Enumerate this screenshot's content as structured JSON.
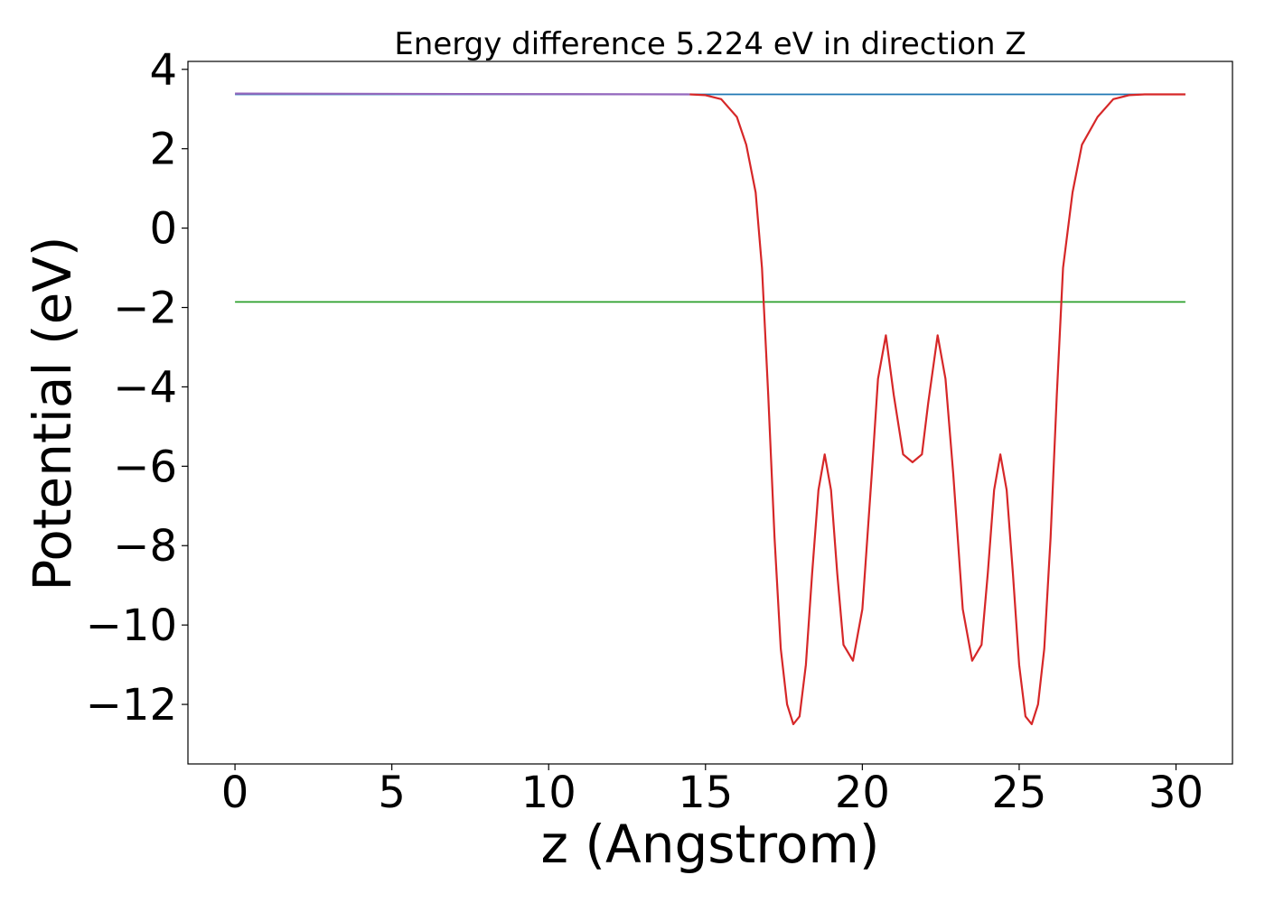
{
  "chart_data": {
    "type": "line",
    "title": "Energy difference 5.224 eV in direction Z",
    "xlabel": "z (Angstrom)",
    "ylabel": "Potential (eV)",
    "xlim": [
      -1.5,
      31.8
    ],
    "ylim": [
      -13.5,
      4.2
    ],
    "xticks": [
      0,
      5,
      10,
      15,
      20,
      25,
      30
    ],
    "xtick_labels": [
      "0",
      "5",
      "10",
      "15",
      "20",
      "25",
      "30"
    ],
    "yticks": [
      4,
      2,
      0,
      -2,
      -4,
      -6,
      -8,
      -10,
      -12
    ],
    "ytick_labels": [
      "4",
      "2",
      "0",
      "−2",
      "−4",
      "−6",
      "−8",
      "−10",
      "−12"
    ],
    "grid": false,
    "legend": "none",
    "series": [
      {
        "color": "#1f77b4",
        "style": "hline",
        "x": [
          0,
          30.3
        ],
        "y": [
          3.37,
          3.37
        ]
      },
      {
        "color": "#2ca02c",
        "style": "hline",
        "x": [
          0,
          30.3
        ],
        "y": [
          -1.86,
          -1.86
        ]
      },
      {
        "color": "#9467bd",
        "style": "line",
        "x": [
          0,
          14.5
        ],
        "y": [
          3.39,
          3.37
        ]
      },
      {
        "color": "#d62728",
        "style": "line",
        "x": [
          14.5,
          15.0,
          15.5,
          16.0,
          16.3,
          16.6,
          16.8,
          17.0,
          17.2,
          17.4,
          17.6,
          17.8,
          18.0,
          18.2,
          18.4,
          18.6,
          18.8,
          19.0,
          19.2,
          19.4,
          19.7,
          20.0,
          20.3,
          20.5,
          20.75,
          21.0,
          21.3,
          21.6,
          21.9,
          22.1,
          22.4,
          22.65,
          22.9,
          23.2,
          23.5,
          23.8,
          24.0,
          24.2,
          24.4,
          24.6,
          24.8,
          25.0,
          25.2,
          25.4,
          25.6,
          25.8,
          26.0,
          26.2,
          26.4,
          26.7,
          27.0,
          27.5,
          28.0,
          28.5,
          29.0,
          30.3
        ],
        "y": [
          3.37,
          3.35,
          3.25,
          2.8,
          2.1,
          0.9,
          -1.0,
          -4.2,
          -7.8,
          -10.6,
          -12.0,
          -12.5,
          -12.3,
          -11.0,
          -8.7,
          -6.6,
          -5.7,
          -6.6,
          -8.7,
          -10.5,
          -10.9,
          -9.6,
          -6.2,
          -3.8,
          -2.7,
          -4.2,
          -5.7,
          -5.9,
          -5.7,
          -4.4,
          -2.7,
          -3.8,
          -6.2,
          -9.6,
          -10.9,
          -10.5,
          -8.7,
          -6.6,
          -5.7,
          -6.6,
          -8.7,
          -11.0,
          -12.3,
          -12.5,
          -12.0,
          -10.6,
          -7.8,
          -4.2,
          -1.0,
          0.9,
          2.1,
          2.8,
          3.25,
          3.35,
          3.37,
          3.37
        ]
      }
    ]
  }
}
